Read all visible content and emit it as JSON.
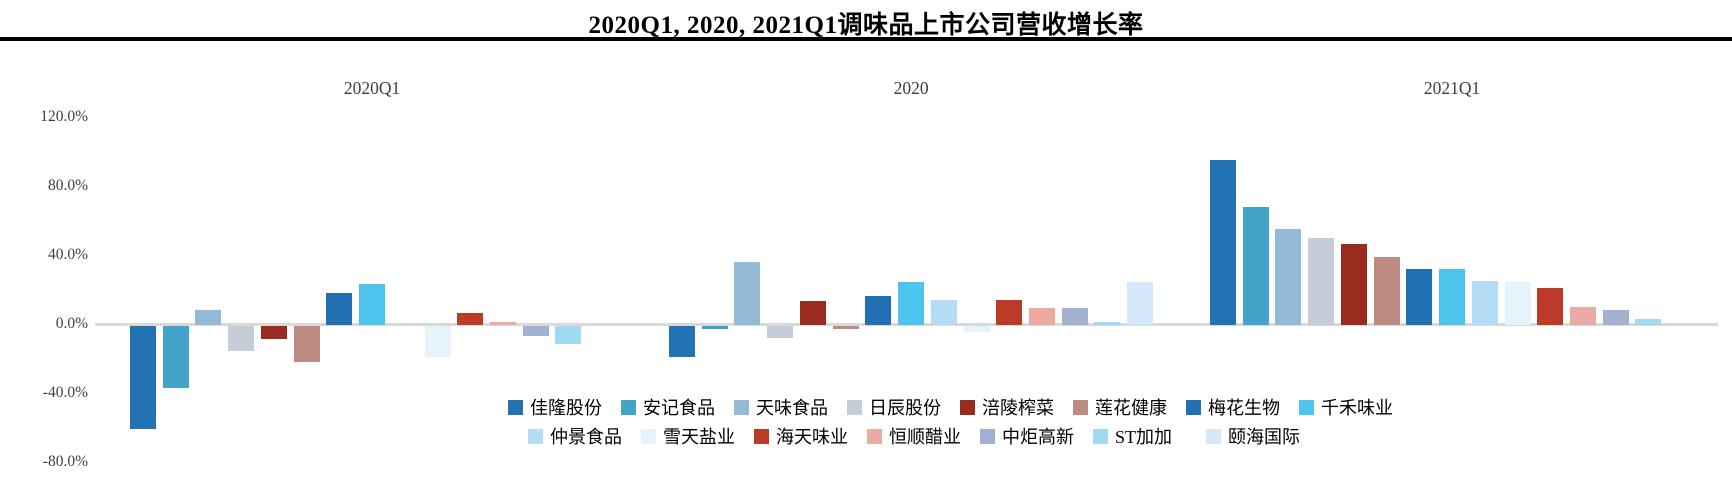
{
  "title": "2020Q1, 2020, 2021Q1调味品上市公司营收增长率",
  "chart_data": {
    "type": "bar",
    "title": "2020Q1, 2020, 2021Q1调味品上市公司营收增长率",
    "unit": "percent",
    "categories": [
      "2020Q1",
      "2020",
      "2021Q1"
    ],
    "ylim": [
      -80,
      120
    ],
    "grid": "zero-baseline-only",
    "legend_position": "bottom",
    "legend_row_split": 8,
    "yticks": [
      {
        "label": "120.0%",
        "value": 120
      },
      {
        "label": "80.0%",
        "value": 80
      },
      {
        "label": "40.0%",
        "value": 40
      },
      {
        "label": "0.0%",
        "value": 0
      },
      {
        "label": "-40.0%",
        "value": -40
      },
      {
        "label": "-80.0%",
        "value": -80
      }
    ],
    "series": [
      {
        "name": "佳隆股份",
        "color": "#2272b4",
        "values": [
          -60,
          -18,
          96
        ]
      },
      {
        "name": "安记食品",
        "color": "#43a3c8",
        "values": [
          -36,
          -2,
          69
        ]
      },
      {
        "name": "天味食品",
        "color": "#93bad6",
        "values": [
          9,
          37,
          56
        ]
      },
      {
        "name": "日辰股份",
        "color": "#c5ced8",
        "values": [
          -15,
          -7,
          51
        ]
      },
      {
        "name": "涪陵榨菜",
        "color": "#9a2c1f",
        "values": [
          -8,
          14,
          47
        ]
      },
      {
        "name": "莲花健康",
        "color": "#bd8a82",
        "values": [
          -21,
          -2,
          40
        ]
      },
      {
        "name": "梅花生物",
        "color": "#2170b3",
        "values": [
          19,
          17,
          33
        ]
      },
      {
        "name": "千禾味业",
        "color": "#4dc4ed",
        "values": [
          24,
          25,
          33
        ]
      },
      {
        "name": "仲景食品",
        "color": "#b3ddf6",
        "values": [
          null,
          15,
          26
        ]
      },
      {
        "name": "雪天盐业",
        "color": "#e7f3fb",
        "values": [
          -18,
          -4,
          25
        ]
      },
      {
        "name": "海天味业",
        "color": "#bb3a28",
        "values": [
          7,
          15,
          22
        ]
      },
      {
        "name": "恒顺醋业",
        "color": "#edaaa2",
        "values": [
          2,
          10,
          11
        ]
      },
      {
        "name": "中炬高新",
        "color": "#a3b1d0",
        "values": [
          -6,
          10,
          9
        ]
      },
      {
        "name": "ST加加",
        "color": "#a0daf2",
        "values": [
          -11,
          2,
          4
        ]
      },
      {
        "name": "颐海国际",
        "color": "#d5e9fa",
        "values": [
          null,
          25,
          null
        ]
      }
    ]
  }
}
